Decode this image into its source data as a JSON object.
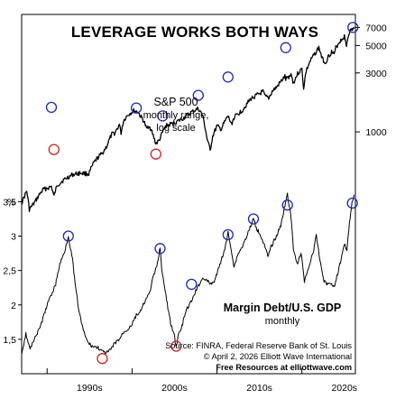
{
  "chart_data": {
    "type": "line",
    "title": "LEVERAGE WORKS BOTH WAYS",
    "x_axis": {
      "range": [
        1987,
        2026.3
      ],
      "tick_labels": [
        {
          "label": "1990s",
          "x": 1995
        },
        {
          "label": "2000s",
          "x": 2005
        },
        {
          "label": "2010s",
          "x": 2015
        },
        {
          "label": "2020s",
          "x": 2025
        }
      ],
      "tick_marks": [
        1990,
        2000,
        2010,
        2020
      ]
    },
    "y_axis_right": {
      "scale": "log",
      "range": [
        220,
        7800
      ],
      "ticks": [
        7000,
        5000,
        3000,
        1000
      ]
    },
    "y_axis_left": {
      "unit": "%",
      "range": [
        1.0,
        3.65
      ],
      "ticks": [
        "3,5",
        "3",
        "2,5",
        "2",
        "1,5"
      ],
      "tick_values": [
        3.5,
        3.0,
        2.5,
        2.0,
        1.5
      ]
    },
    "series": [
      {
        "name": "S&P 500",
        "label_lines": [
          "S&P 500",
          "monthly range,",
          "log scale"
        ],
        "axis": "right",
        "points": [
          [
            1987.0,
            265
          ],
          [
            1987.6,
            330
          ],
          [
            1987.9,
            235
          ],
          [
            1988.5,
            265
          ],
          [
            1989.5,
            340
          ],
          [
            1990.0,
            350
          ],
          [
            1990.5,
            360
          ],
          [
            1990.8,
            300
          ],
          [
            1991.2,
            370
          ],
          [
            1992.0,
            410
          ],
          [
            1993.0,
            450
          ],
          [
            1994.0,
            465
          ],
          [
            1994.9,
            455
          ],
          [
            1995.5,
            560
          ],
          [
            1996.0,
            620
          ],
          [
            1996.5,
            670
          ],
          [
            1997.0,
            760
          ],
          [
            1997.6,
            950
          ],
          [
            1998.0,
            980
          ],
          [
            1998.5,
            1140
          ],
          [
            1998.7,
            980
          ],
          [
            1999.0,
            1230
          ],
          [
            1999.5,
            1370
          ],
          [
            2000.2,
            1480
          ],
          [
            2000.7,
            1450
          ],
          [
            2001.0,
            1330
          ],
          [
            2001.4,
            1220
          ],
          [
            2001.7,
            1050
          ],
          [
            2002.0,
            1130
          ],
          [
            2002.5,
            930
          ],
          [
            2002.8,
            800
          ],
          [
            2003.2,
            850
          ],
          [
            2003.6,
            990
          ],
          [
            2004.0,
            1120
          ],
          [
            2005.0,
            1180
          ],
          [
            2006.0,
            1280
          ],
          [
            2007.0,
            1440
          ],
          [
            2007.8,
            1540
          ],
          [
            2008.3,
            1360
          ],
          [
            2008.8,
            900
          ],
          [
            2009.2,
            700
          ],
          [
            2009.5,
            920
          ],
          [
            2010.0,
            1110
          ],
          [
            2010.5,
            1050
          ],
          [
            2011.3,
            1340
          ],
          [
            2011.7,
            1150
          ],
          [
            2012.0,
            1300
          ],
          [
            2013.0,
            1500
          ],
          [
            2014.0,
            1850
          ],
          [
            2015.4,
            2110
          ],
          [
            2015.7,
            1920
          ],
          [
            2016.1,
            1880
          ],
          [
            2016.6,
            2170
          ],
          [
            2017.0,
            2280
          ],
          [
            2018.0,
            2800
          ],
          [
            2018.1,
            2650
          ],
          [
            2018.8,
            2930
          ],
          [
            2018.95,
            2450
          ],
          [
            2019.5,
            2950
          ],
          [
            2020.0,
            3230
          ],
          [
            2020.2,
            2240
          ],
          [
            2020.5,
            3100
          ],
          [
            2021.0,
            3750
          ],
          [
            2021.9,
            4700
          ],
          [
            2022.0,
            4800
          ],
          [
            2022.4,
            3900
          ],
          [
            2022.8,
            3600
          ],
          [
            2023.0,
            3950
          ],
          [
            2023.5,
            4450
          ],
          [
            2023.8,
            4200
          ],
          [
            2024.0,
            4800
          ],
          [
            2024.5,
            5450
          ],
          [
            2025.0,
            5900
          ],
          [
            2025.25,
            5000
          ],
          [
            2025.5,
            6250
          ],
          [
            2025.8,
            6700
          ],
          [
            2026.2,
            6900
          ]
        ]
      },
      {
        "name": "Margin Debt/U.S. GDP",
        "label_lines": [
          "Margin Debt/U.S. GDP",
          "monthly"
        ],
        "axis": "left",
        "points": [
          [
            1987.0,
            1.3
          ],
          [
            1987.5,
            1.58
          ],
          [
            1988.0,
            1.35
          ],
          [
            1988.5,
            1.52
          ],
          [
            1989.0,
            1.62
          ],
          [
            1989.5,
            1.8
          ],
          [
            1990.0,
            2.0
          ],
          [
            1990.5,
            2.15
          ],
          [
            1991.0,
            2.3
          ],
          [
            1991.5,
            2.6
          ],
          [
            1992.0,
            2.75
          ],
          [
            1992.5,
            3.0
          ],
          [
            1993.0,
            2.65
          ],
          [
            1993.3,
            2.3
          ],
          [
            1993.7,
            1.95
          ],
          [
            1994.2,
            1.65
          ],
          [
            1994.8,
            1.45
          ],
          [
            1995.3,
            1.4
          ],
          [
            1996.0,
            1.38
          ],
          [
            1996.5,
            1.32
          ],
          [
            1997.0,
            1.3
          ],
          [
            1997.5,
            1.35
          ],
          [
            1998.0,
            1.45
          ],
          [
            1998.5,
            1.5
          ],
          [
            1999.0,
            1.6
          ],
          [
            1999.5,
            1.65
          ],
          [
            2000.0,
            1.72
          ],
          [
            2000.5,
            1.85
          ],
          [
            2001.0,
            1.9
          ],
          [
            2001.5,
            2.05
          ],
          [
            2002.0,
            2.15
          ],
          [
            2002.5,
            2.4
          ],
          [
            2003.0,
            2.6
          ],
          [
            2003.3,
            2.85
          ],
          [
            2003.5,
            2.5
          ],
          [
            2003.9,
            2.2
          ],
          [
            2004.3,
            1.9
          ],
          [
            2004.6,
            1.7
          ],
          [
            2005.0,
            1.55
          ],
          [
            2005.2,
            1.38
          ],
          [
            2005.4,
            1.55
          ],
          [
            2005.8,
            1.65
          ],
          [
            2006.2,
            1.85
          ],
          [
            2006.5,
            1.95
          ],
          [
            2007.0,
            2.05
          ],
          [
            2007.5,
            2.2
          ],
          [
            2007.9,
            2.3
          ],
          [
            2008.4,
            2.4
          ],
          [
            2008.8,
            2.35
          ],
          [
            2009.3,
            2.3
          ],
          [
            2009.7,
            2.35
          ],
          [
            2010.0,
            2.45
          ],
          [
            2010.5,
            2.65
          ],
          [
            2011.0,
            2.85
          ],
          [
            2011.3,
            3.05
          ],
          [
            2011.7,
            2.8
          ],
          [
            2012.0,
            2.55
          ],
          [
            2012.5,
            2.75
          ],
          [
            2013.0,
            2.85
          ],
          [
            2013.5,
            3.0
          ],
          [
            2014.0,
            3.15
          ],
          [
            2014.3,
            3.25
          ],
          [
            2014.7,
            3.1
          ],
          [
            2015.0,
            3.05
          ],
          [
            2015.5,
            2.9
          ],
          [
            2016.0,
            2.7
          ],
          [
            2016.4,
            2.85
          ],
          [
            2017.0,
            3.0
          ],
          [
            2017.5,
            3.15
          ],
          [
            2018.0,
            3.45
          ],
          [
            2018.3,
            3.6
          ],
          [
            2018.7,
            3.3
          ],
          [
            2019.0,
            2.8
          ],
          [
            2019.5,
            2.6
          ],
          [
            2019.9,
            2.75
          ],
          [
            2020.3,
            2.35
          ],
          [
            2020.8,
            2.55
          ],
          [
            2021.3,
            2.75
          ],
          [
            2021.7,
            3.0
          ],
          [
            2022.2,
            2.6
          ],
          [
            2022.6,
            2.35
          ],
          [
            2023.0,
            2.3
          ],
          [
            2023.5,
            2.32
          ],
          [
            2023.8,
            2.25
          ],
          [
            2024.3,
            2.5
          ],
          [
            2024.7,
            2.7
          ],
          [
            2025.0,
            2.9
          ],
          [
            2025.3,
            2.8
          ],
          [
            2025.6,
            3.2
          ],
          [
            2025.9,
            3.48
          ],
          [
            2026.15,
            3.6
          ]
        ]
      }
    ],
    "markers": {
      "peaks_color": "#1a2ab8",
      "troughs_color": "#d42020",
      "sp500_peaks": [
        [
          1990.5,
          1580
        ],
        [
          2000.5,
          1560
        ],
        [
          2003.6,
          1345
        ],
        [
          2007.8,
          1975
        ],
        [
          2011.3,
          2780
        ],
        [
          2018.1,
          4800
        ],
        [
          2026.0,
          7000
        ]
      ],
      "sp500_troughs": [
        [
          1990.8,
          720
        ],
        [
          2002.8,
          660
        ]
      ],
      "margin_peaks": [
        [
          1992.5,
          3.0
        ],
        [
          2003.3,
          2.82
        ],
        [
          2007.0,
          2.3
        ],
        [
          2011.3,
          3.02
        ],
        [
          2014.3,
          3.25
        ],
        [
          2018.3,
          3.45
        ],
        [
          2025.95,
          3.48
        ]
      ],
      "margin_troughs": [
        [
          1996.5,
          1.22
        ],
        [
          2005.2,
          1.4
        ]
      ]
    },
    "grid": false,
    "legend": "none"
  },
  "source_text": [
    "Source: FINRA, Federal Reserve Bank of St. Louis",
    "© April 2, 2026  Elliott Wave International",
    "Free Resources at elliottwave.com"
  ]
}
